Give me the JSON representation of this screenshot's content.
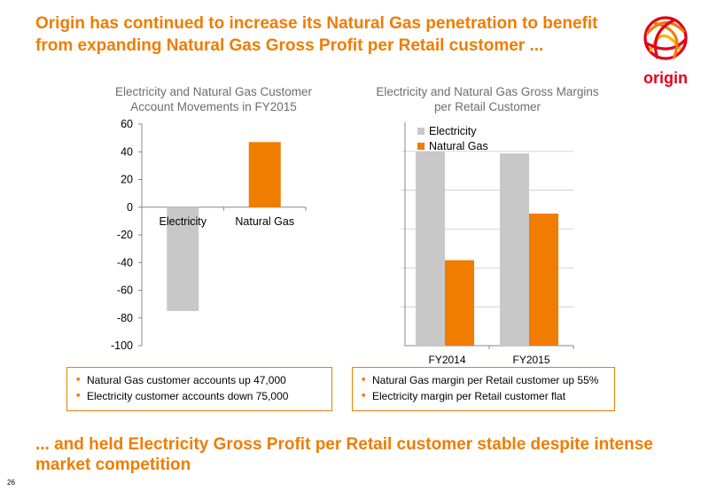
{
  "header": {
    "title": "Origin has continued to increase its Natural Gas penetration to benefit from expanding Natural Gas Gross Profit per Retail customer ..."
  },
  "logo": {
    "text": "origin"
  },
  "chart_data": [
    {
      "type": "bar",
      "title": "Electricity and Natural Gas Customer Account Movements in FY2015",
      "categories": [
        "Electricity",
        "Natural Gas"
      ],
      "values": [
        -75,
        47
      ],
      "colors": [
        "#c8c8c8",
        "#f07c00"
      ],
      "ylim": [
        -100,
        60
      ],
      "yticks": [
        60,
        40,
        20,
        0,
        -20,
        -40,
        -60,
        -80,
        -100
      ],
      "xlabel": "",
      "ylabel": "",
      "grid": false
    },
    {
      "type": "bar",
      "title": "Electricity and Natural Gas Gross Margins per Retail Customer",
      "categories": [
        "FY2014",
        "FY2015"
      ],
      "series": [
        {
          "name": "Electricity",
          "color": "#c8c8c8",
          "values": [
            100,
            99
          ]
        },
        {
          "name": "Natural Gas",
          "color": "#f07c00",
          "values": [
            44,
            68
          ]
        }
      ],
      "ylim": [
        0,
        115
      ],
      "yticks_shown": false,
      "grid": true,
      "legend": "top-left"
    }
  ],
  "left_box": {
    "bullets": [
      "Natural Gas customer accounts up 47,000",
      "Electricity customer accounts down 75,000"
    ]
  },
  "right_box": {
    "bullets": [
      "Natural Gas margin per Retail customer up 55%",
      "Electricity margin per Retail customer flat"
    ]
  },
  "footer": {
    "text": "... and held Electricity Gross Profit per Retail customer stable despite intense market competition"
  },
  "page": {
    "number": "26"
  }
}
